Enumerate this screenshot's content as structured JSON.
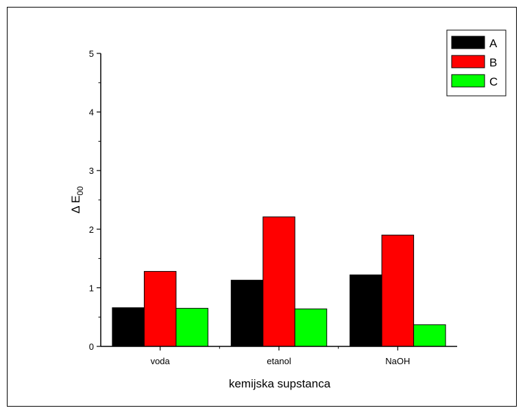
{
  "chart_data": {
    "type": "bar",
    "title": "",
    "xlabel": "kemijska supstanca",
    "ylabel_main": "Δ E",
    "ylabel_sub": "00",
    "categories": [
      "voda",
      "etanol",
      "NaOH"
    ],
    "series": [
      {
        "name": "A",
        "color": "#000000",
        "values": [
          0.66,
          1.13,
          1.22
        ]
      },
      {
        "name": "B",
        "color": "#ff0000",
        "values": [
          1.28,
          2.21,
          1.9
        ]
      },
      {
        "name": "C",
        "color": "#00ff00",
        "values": [
          0.65,
          0.64,
          0.37
        ]
      }
    ],
    "ylim": [
      0,
      5
    ],
    "yticks": [
      "0",
      "1",
      "2",
      "3",
      "4",
      "5"
    ],
    "legend_position": "top-right",
    "grid": false
  }
}
